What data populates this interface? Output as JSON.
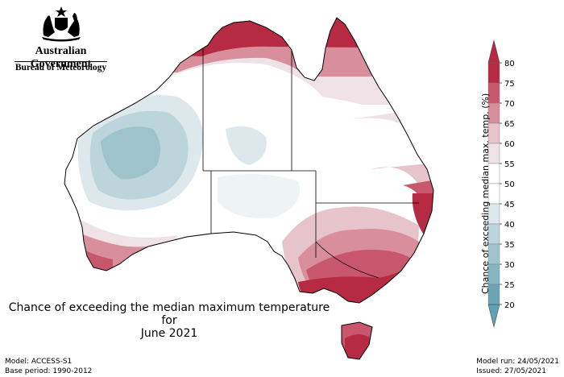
{
  "branding": {
    "government": "Australian Government",
    "agency": "Bureau of Meteorology",
    "crest_icon": "coat-of-arms-icon"
  },
  "map": {
    "region": "Australia",
    "colors": {
      "land_base": "#ffffff",
      "cool_light": "#dde8ec",
      "cool_mid": "#bcd5dc",
      "cool_dark": "#9ec3cc",
      "warm_60": "#efe2e6",
      "warm_65": "#e7c3cb",
      "warm_70": "#d98e9c",
      "warm_75": "#c8576d",
      "warm_80": "#b62a44",
      "border": "#000000"
    }
  },
  "title": {
    "line1": "Chance of exceeding the median maximum temperature for",
    "line2": "June 2021"
  },
  "footer": {
    "model": "Model: ACCESS-S1",
    "base_period": "Base period: 1990-2012",
    "model_run": "Model run: 24/05/2021",
    "issued": "Issued: 27/05/2021"
  },
  "colorbar": {
    "label": "Chance of exceeding median max. temp. (%)",
    "ticks": [
      "80",
      "75",
      "70",
      "65",
      "60",
      "55",
      "50",
      "45",
      "40",
      "35",
      "30",
      "25",
      "20"
    ],
    "bands": [
      {
        "range": "75-80",
        "color": "#b62a44"
      },
      {
        "range": "70-75",
        "color": "#c8576d"
      },
      {
        "range": "65-70",
        "color": "#d98e9c"
      },
      {
        "range": "60-65",
        "color": "#e7c3cb"
      },
      {
        "range": "55-60",
        "color": "#efe2e6"
      },
      {
        "range": "50-55",
        "color": "#ffffff"
      },
      {
        "range": "45-50",
        "color": "#ffffff"
      },
      {
        "range": "40-45",
        "color": "#dde8ec"
      },
      {
        "range": "35-40",
        "color": "#bcd5dc"
      },
      {
        "range": "30-35",
        "color": "#9ec3cc"
      },
      {
        "range": "25-30",
        "color": "#86b6c2"
      },
      {
        "range": "20-25",
        "color": "#6aa5b5"
      }
    ],
    "top_arrow_color": "#b62a44",
    "bottom_arrow_color": "#5ea2b4"
  }
}
